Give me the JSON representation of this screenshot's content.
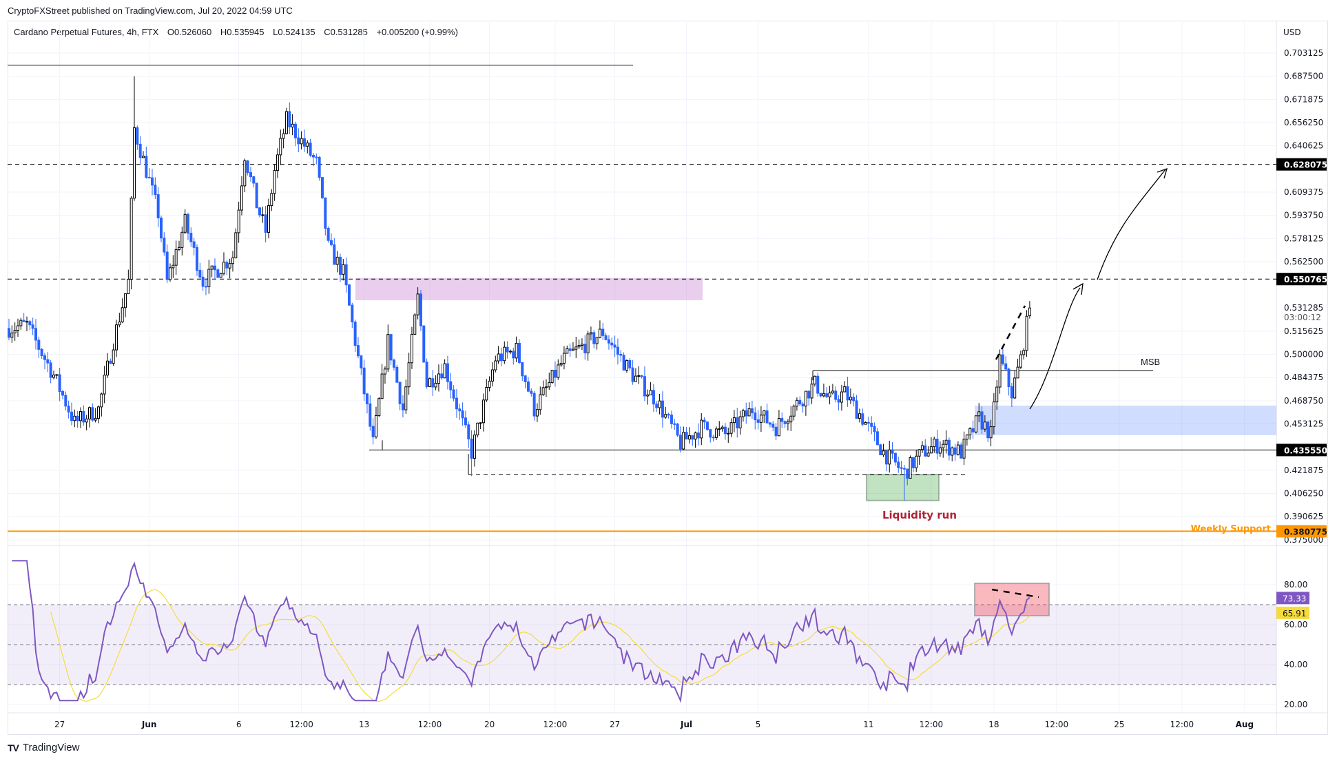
{
  "published": "CryptoFXStreet published on TradingView.com, Jul 20, 2022 04:59 UTC",
  "legend": {
    "symbol": "Cardano Perpetual Futures, 4h, FTX",
    "open": "O0.526060",
    "high": "H0.535945",
    "low": "L0.524135",
    "close": "C0.531285",
    "change": "+0.005200 (+0.99%)"
  },
  "footer": {
    "logo_text": "TradingView"
  },
  "colors": {
    "up_body": "#ffffff",
    "up_border": "#000000",
    "down": "#2962ff",
    "rsi": "#7e57c2",
    "rsi_ma": "#f5dc3c",
    "orange": "#ff9800",
    "liquidity": "#b22234"
  },
  "chart_data": {
    "type": "candlestick",
    "title": "Cardano Perpetual Futures, 4h, FTX",
    "currency_label": "USD",
    "ylim": [
      0.369,
      0.712
    ],
    "candle_count": 343,
    "last_candle": {
      "open": 0.52606,
      "high": 0.535945,
      "low": 0.524135,
      "close": 0.531285
    },
    "close_keypoints": [
      [
        0,
        0.5175
      ],
      [
        6,
        0.52
      ],
      [
        15,
        0.486
      ],
      [
        22,
        0.454
      ],
      [
        30,
        0.463
      ],
      [
        35,
        0.509
      ],
      [
        40,
        0.549
      ],
      [
        42,
        0.652
      ],
      [
        46,
        0.624
      ],
      [
        50,
        0.595
      ],
      [
        53,
        0.549
      ],
      [
        59,
        0.589
      ],
      [
        65,
        0.549
      ],
      [
        75,
        0.566
      ],
      [
        79,
        0.635
      ],
      [
        83,
        0.601
      ],
      [
        86,
        0.583
      ],
      [
        89,
        0.624
      ],
      [
        93,
        0.658
      ],
      [
        99,
        0.641
      ],
      [
        103,
        0.629
      ],
      [
        107,
        0.572
      ],
      [
        112,
        0.555
      ],
      [
        116,
        0.509
      ],
      [
        122,
        0.44
      ],
      [
        127,
        0.509
      ],
      [
        132,
        0.463
      ],
      [
        137,
        0.538
      ],
      [
        140,
        0.48
      ],
      [
        146,
        0.492
      ],
      [
        155,
        0.434
      ],
      [
        163,
        0.497
      ],
      [
        170,
        0.503
      ],
      [
        176,
        0.463
      ],
      [
        186,
        0.497
      ],
      [
        199,
        0.515
      ],
      [
        209,
        0.486
      ],
      [
        217,
        0.469
      ],
      [
        225,
        0.44
      ],
      [
        232,
        0.451
      ],
      [
        240,
        0.446
      ],
      [
        249,
        0.463
      ],
      [
        257,
        0.451
      ],
      [
        270,
        0.48
      ],
      [
        275,
        0.469
      ],
      [
        280,
        0.474
      ],
      [
        286,
        0.457
      ],
      [
        293,
        0.434
      ],
      [
        300,
        0.42
      ],
      [
        306,
        0.434
      ],
      [
        312,
        0.44
      ],
      [
        319,
        0.434
      ],
      [
        325,
        0.457
      ],
      [
        329,
        0.446
      ],
      [
        332,
        0.497
      ],
      [
        336,
        0.474
      ],
      [
        339,
        0.497
      ],
      [
        342,
        0.531285
      ]
    ],
    "price_ticks": [
      "0.703125",
      "0.687500",
      "0.671875",
      "0.656250",
      "0.640625",
      "0.609375",
      "0.593750",
      "0.578125",
      "0.562500",
      "0.515625",
      "0.500000",
      "0.484375",
      "0.468750",
      "0.453125",
      "0.421875",
      "0.406250",
      "0.390625",
      "0.375000"
    ],
    "price_badges": [
      {
        "value": "0.628075",
        "bg": "#000000",
        "fg": "#ffffff"
      },
      {
        "value": "0.550765",
        "bg": "#000000",
        "fg": "#ffffff"
      },
      {
        "value": "0.435550",
        "bg": "#000000",
        "fg": "#ffffff"
      },
      {
        "value": "0.380775",
        "bg": "#ff9800",
        "fg": "#131722"
      }
    ],
    "last_price": {
      "value": "0.531285",
      "countdown": "03:00:12"
    },
    "time_ticks": [
      [
        "27",
        17
      ],
      [
        "Jun",
        47,
        true
      ],
      [
        "6",
        77
      ],
      [
        "12:00",
        98
      ],
      [
        "13",
        119
      ],
      [
        "12:00",
        141
      ],
      [
        "20",
        161
      ],
      [
        "12:00",
        183
      ],
      [
        "27",
        203
      ],
      [
        "Jul",
        227,
        true
      ],
      [
        "5",
        251
      ],
      [
        "11",
        288
      ],
      [
        "12:00",
        309
      ],
      [
        "18",
        330
      ],
      [
        "12:00",
        351
      ],
      [
        "25",
        372
      ],
      [
        "12:00",
        393
      ],
      [
        "Aug",
        414,
        true
      ]
    ],
    "annotations": {
      "msb_label": "MSB",
      "msb_price": 0.489,
      "liquidity_label": "Liquidity run",
      "weekly_support_label": "Weekly Support",
      "weekly_support_price": 0.380775,
      "resistance_upper": 0.628075,
      "resistance_lower": 0.550765,
      "support": 0.43555,
      "supply_zone": [
        0.5365,
        0.5515
      ],
      "demand_zone": [
        0.4455,
        0.4655
      ],
      "liquidity_box": [
        0.4015,
        0.419
      ],
      "liquidity_line": 0.419,
      "top_line": 0.695
    },
    "rsi": {
      "period": 14,
      "ma_period": 14,
      "ylim": [
        15,
        95
      ],
      "ticks": [
        "80.00",
        "60.00",
        "40.00",
        "20.00"
      ],
      "levels": [
        70,
        50,
        30
      ],
      "badge_rsi": "73.33",
      "badge_ma": "65.91"
    }
  }
}
